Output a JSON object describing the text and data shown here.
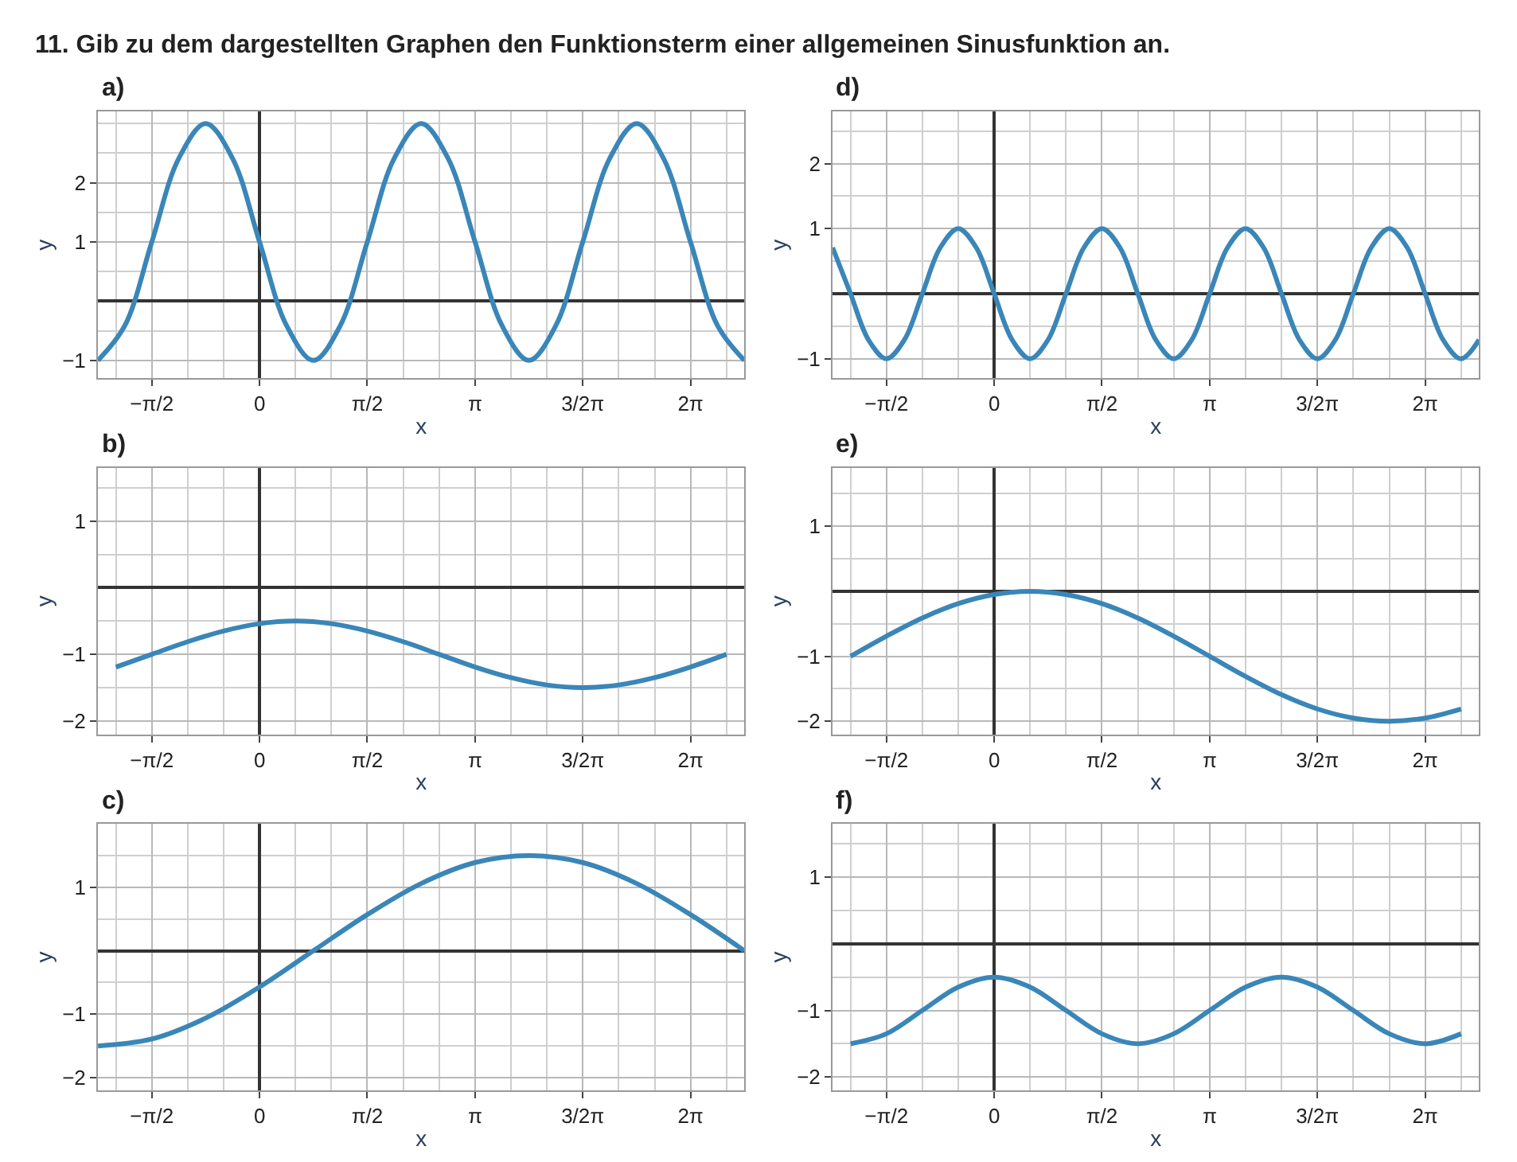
{
  "chart_data": [
    {
      "type": "line",
      "title": "11. Gib zu dem dargestellten Graphen den Funktionsterm einer allgemeinen Sinusfunktion an.",
      "subtitle": "a)",
      "xlabel": "x",
      "ylabel": "y",
      "x": [
        -2.356,
        -1.963,
        -1.571,
        -1.178,
        -0.785,
        -0.393,
        0,
        0.393,
        0.785,
        1.178,
        1.571,
        1.963,
        2.356,
        2.749,
        3.142,
        3.534,
        3.927,
        4.32,
        4.712,
        5.105,
        5.498,
        5.89,
        6.283,
        6.676,
        7.069
      ],
      "series": [
        {
          "color": "#3a86b8",
          "values": [
            -1,
            -0.41,
            1,
            2.41,
            3,
            2.41,
            1,
            -0.41,
            -1,
            -0.41,
            1,
            2.41,
            3,
            2.41,
            1,
            -0.41,
            -1,
            -0.41,
            1,
            2.41,
            3,
            2.41,
            1,
            -0.41,
            -1
          ]
        }
      ],
      "xlim": [
        -2.356,
        7.069
      ],
      "ylim": [
        -1.3,
        3.2
      ],
      "xticks": [
        {
          "value": -1.571,
          "label": "−π/2"
        },
        {
          "value": 0,
          "label": "0"
        },
        {
          "value": 1.571,
          "label": "π/2"
        },
        {
          "value": 3.142,
          "label": "π"
        },
        {
          "value": 4.712,
          "label": "3/2π"
        },
        {
          "value": 6.283,
          "label": "2π"
        }
      ],
      "yticks": [
        -1,
        1,
        2
      ],
      "grid": true
    },
    {
      "type": "line",
      "title": "d)",
      "xlabel": "x",
      "ylabel": "y",
      "x": [
        -2.356,
        -2.094,
        -1.833,
        -1.571,
        -1.309,
        -1.047,
        -0.785,
        -0.524,
        -0.262,
        0,
        0.262,
        0.524,
        0.785,
        1.047,
        1.309,
        1.571,
        1.833,
        2.094,
        2.356,
        2.618,
        2.88,
        3.142,
        3.403,
        3.665,
        3.927,
        4.189,
        4.451,
        4.712,
        4.974,
        5.236,
        5.498,
        5.76,
        6.021,
        6.283,
        6.545,
        6.807,
        7.069
      ],
      "series": [
        {
          "color": "#3a86b8",
          "values": [
            0.71,
            0,
            -0.71,
            -1,
            -0.71,
            0,
            0.71,
            1,
            0.71,
            0,
            -0.71,
            -1,
            -0.71,
            0,
            0.71,
            1,
            0.71,
            0,
            -0.71,
            -1,
            -0.71,
            0,
            0.71,
            1,
            0.71,
            0,
            -0.71,
            -1,
            -0.71,
            0,
            0.71,
            1,
            0.71,
            0,
            -0.71,
            -1,
            -0.71
          ]
        }
      ],
      "xlim": [
        -2.356,
        7.069
      ],
      "ylim": [
        -1.3,
        2.8
      ],
      "xticks": [
        {
          "value": -1.571,
          "label": "−π/2"
        },
        {
          "value": 0,
          "label": "0"
        },
        {
          "value": 1.571,
          "label": "π/2"
        },
        {
          "value": 3.142,
          "label": "π"
        },
        {
          "value": 4.712,
          "label": "3/2π"
        },
        {
          "value": 6.283,
          "label": "2π"
        }
      ],
      "yticks": [
        -1,
        1,
        2
      ],
      "grid": true
    },
    {
      "type": "line",
      "title": "b)",
      "xlabel": "x",
      "ylabel": "y",
      "x": [
        -2.094,
        -1.571,
        -1.047,
        -0.524,
        0,
        0.524,
        1.047,
        1.571,
        2.094,
        2.618,
        3.142,
        3.665,
        4.189,
        4.712,
        5.236,
        5.76,
        6.283,
        6.807
      ],
      "series": [
        {
          "color": "#3a86b8",
          "values": [
            -1.19,
            -1,
            -0.81,
            -0.65,
            -0.54,
            -0.5,
            -0.54,
            -0.65,
            -0.81,
            -1,
            -1.19,
            -1.35,
            -1.46,
            -1.5,
            -1.46,
            -1.35,
            -1.19,
            -1
          ]
        }
      ],
      "xlim": [
        -2.356,
        7.069
      ],
      "ylim": [
        -2.2,
        1.8
      ],
      "xticks": [
        {
          "value": -1.571,
          "label": "−π/2"
        },
        {
          "value": 0,
          "label": "0"
        },
        {
          "value": 1.571,
          "label": "π/2"
        },
        {
          "value": 3.142,
          "label": "π"
        },
        {
          "value": 4.712,
          "label": "3/2π"
        },
        {
          "value": 6.283,
          "label": "2π"
        }
      ],
      "yticks": [
        -2,
        -1,
        1
      ],
      "grid": true
    },
    {
      "type": "line",
      "title": "e)",
      "xlabel": "x",
      "ylabel": "y",
      "x": [
        -2.094,
        -1.571,
        -1.047,
        -0.524,
        0,
        0.524,
        1.047,
        1.571,
        2.094,
        2.618,
        3.142,
        3.665,
        4.189,
        4.712,
        5.236,
        5.76,
        6.283,
        6.807
      ],
      "series": [
        {
          "color": "#3a86b8",
          "values": [
            -1,
            -0.69,
            -0.41,
            -0.19,
            -0.05,
            0,
            -0.05,
            -0.19,
            -0.41,
            -0.69,
            -1,
            -1.31,
            -1.59,
            -1.81,
            -1.95,
            -2,
            -1.95,
            -1.81
          ]
        }
      ],
      "xlim": [
        -2.356,
        7.069
      ],
      "ylim": [
        -2.2,
        1.9
      ],
      "xticks": [
        {
          "value": -1.571,
          "label": "−π/2"
        },
        {
          "value": 0,
          "label": "0"
        },
        {
          "value": 1.571,
          "label": "π/2"
        },
        {
          "value": 3.142,
          "label": "π"
        },
        {
          "value": 4.712,
          "label": "3/2π"
        },
        {
          "value": 6.283,
          "label": "2π"
        }
      ],
      "yticks": [
        -2,
        -1,
        1
      ],
      "grid": true
    },
    {
      "type": "line",
      "title": "c)",
      "xlabel": "x",
      "ylabel": "y",
      "x": [
        -2.356,
        -1.571,
        -0.785,
        0,
        0.785,
        1.571,
        2.356,
        3.142,
        3.927,
        4.712,
        5.498,
        6.283,
        7.069
      ],
      "series": [
        {
          "color": "#3a86b8",
          "values": [
            -1.5,
            -1.39,
            -1.06,
            -0.57,
            0,
            0.57,
            1.06,
            1.39,
            1.5,
            1.39,
            1.06,
            0.57,
            0
          ]
        }
      ],
      "xlim": [
        -2.356,
        7.069
      ],
      "ylim": [
        -2.2,
        2.0
      ],
      "xticks": [
        {
          "value": -1.571,
          "label": "−π/2"
        },
        {
          "value": 0,
          "label": "0"
        },
        {
          "value": 1.571,
          "label": "π/2"
        },
        {
          "value": 3.142,
          "label": "π"
        },
        {
          "value": 4.712,
          "label": "3/2π"
        },
        {
          "value": 6.283,
          "label": "2π"
        }
      ],
      "yticks": [
        -2,
        -1,
        1
      ],
      "grid": true
    },
    {
      "type": "line",
      "title": "f)",
      "xlabel": "x",
      "ylabel": "y",
      "x": [
        -2.094,
        -1.571,
        -1.047,
        -0.524,
        0,
        0.524,
        1.047,
        1.571,
        2.094,
        2.618,
        3.142,
        3.665,
        4.189,
        4.712,
        5.236,
        5.76,
        6.283,
        6.807
      ],
      "series": [
        {
          "color": "#3a86b8",
          "values": [
            -1.5,
            -1.35,
            -1,
            -0.65,
            -0.5,
            -0.65,
            -1,
            -1.35,
            -1.5,
            -1.35,
            -1,
            -0.65,
            -0.5,
            -0.65,
            -1,
            -1.35,
            -1.5,
            -1.35
          ]
        }
      ],
      "xlim": [
        -2.356,
        7.069
      ],
      "ylim": [
        -2.2,
        1.8
      ],
      "xticks": [
        {
          "value": -1.571,
          "label": "−π/2"
        },
        {
          "value": 0,
          "label": "0"
        },
        {
          "value": 1.571,
          "label": "π/2"
        },
        {
          "value": 3.142,
          "label": "π"
        },
        {
          "value": 4.712,
          "label": "3/2π"
        },
        {
          "value": 6.283,
          "label": "2π"
        }
      ],
      "yticks": [
        -2,
        -1,
        1
      ],
      "grid": true
    }
  ]
}
